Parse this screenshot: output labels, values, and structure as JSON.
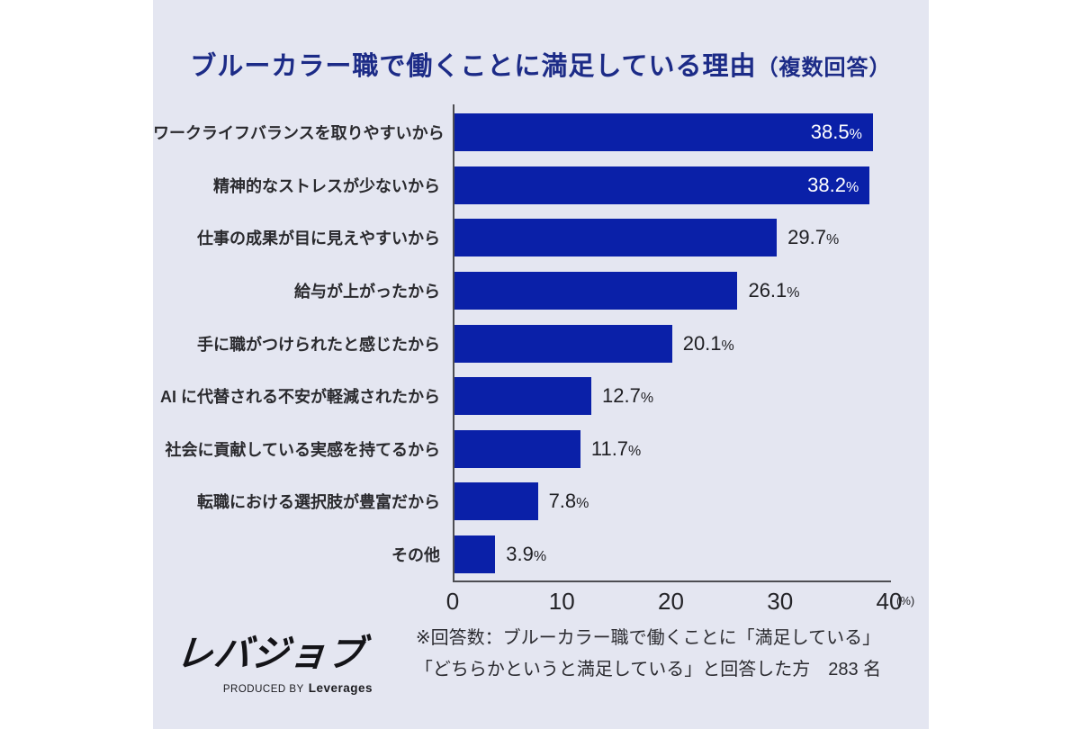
{
  "title": {
    "main": "ブルーカラー職で働くことに満足している理由",
    "suffix": "（複数回答）"
  },
  "chart_data": {
    "type": "bar",
    "orientation": "horizontal",
    "title": "ブルーカラー職で働くことに満足している理由（複数回答）",
    "xlabel": "",
    "ylabel": "",
    "xlim": [
      0,
      40
    ],
    "x_ticks": [
      "0",
      "10",
      "20",
      "30",
      "40"
    ],
    "x_tick_values": [
      0,
      10,
      20,
      30,
      40
    ],
    "x_unit": "(%)",
    "percent_suffix": "%",
    "bar_color": "#0a20a8",
    "grid": false,
    "legend": false,
    "categories": [
      "ワークライフバランスを取りやすいから",
      "精神的なストレスが少ないから",
      "仕事の成果が目に見えやすいから",
      "給与が上がったから",
      "手に職がつけられたと感じたから",
      "AI に代替される不安が軽減されたから",
      "社会に貢献している実感を持てるから",
      "転職における選択肢が豊富だから",
      "その他"
    ],
    "values": [
      38.5,
      38.2,
      29.7,
      26.1,
      20.1,
      12.7,
      11.7,
      7.8,
      3.9
    ],
    "items": [
      {
        "label": "ワークライフバランスを取りやすいから",
        "value": 38.5,
        "value_label": "38.5",
        "label_inside": true
      },
      {
        "label": "精神的なストレスが少ないから",
        "value": 38.2,
        "value_label": "38.2",
        "label_inside": true
      },
      {
        "label": "仕事の成果が目に見えやすいから",
        "value": 29.7,
        "value_label": "29.7",
        "label_inside": false
      },
      {
        "label": "給与が上がったから",
        "value": 26.1,
        "value_label": "26.1",
        "label_inside": false
      },
      {
        "label": "手に職がつけられたと感じたから",
        "value": 20.1,
        "value_label": "20.1",
        "label_inside": false
      },
      {
        "label": "AI に代替される不安が軽減されたから",
        "value": 12.7,
        "value_label": "12.7",
        "label_inside": false
      },
      {
        "label": "社会に貢献している実感を持てるから",
        "value": 11.7,
        "value_label": "11.7",
        "label_inside": false
      },
      {
        "label": "転職における選択肢が豊富だから",
        "value": 7.8,
        "value_label": "7.8",
        "label_inside": false
      },
      {
        "label": "その他",
        "value": 3.9,
        "value_label": "3.9",
        "label_inside": false
      }
    ]
  },
  "footer": {
    "logo_text": "レバジョブ",
    "produced_by": "PRODUCED BY",
    "brand": "Leverages",
    "footnote_line1": "※回答数：ブルーカラー職で働くことに「満足している」",
    "footnote_line2": "「どちらかというと満足している」と回答した方　283 名"
  },
  "colors": {
    "card_background": "#e4e6f1",
    "bar": "#0a20a8",
    "title": "#1c2b87",
    "axis": "#4d4d52",
    "text": "#2a2a2e"
  }
}
